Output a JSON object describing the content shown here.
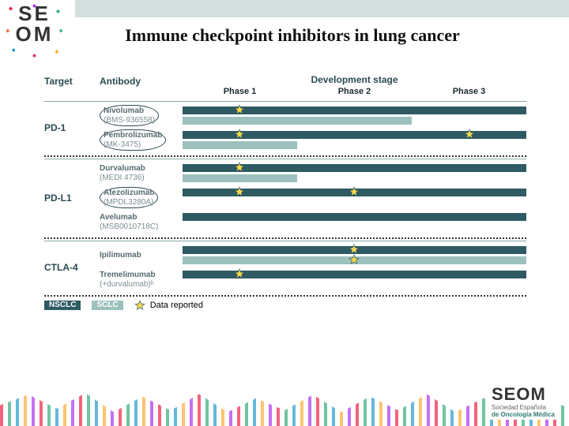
{
  "title": "Immune checkpoint inhibitors in lung cancer",
  "logo_left": "SE\nOM",
  "logo_right": {
    "big": "SEOM",
    "sub1": "Sociedad Española",
    "sub2": "de Oncología Médica"
  },
  "colors": {
    "nsclc": "#2e5a63",
    "sclc": "#9cc1bd",
    "star_fill": "#f7d94c",
    "star_stroke": "#2e5a63",
    "header_band": "#d3dfdd",
    "text_muted": "#2a4a52"
  },
  "headers": {
    "target": "Target",
    "antibody": "Antibody",
    "devstage": "Development stage",
    "phases": [
      "Phase 1",
      "Phase 2",
      "Phase 3"
    ]
  },
  "phase_fraction": {
    "1": 0.333,
    "2": 0.666,
    "3": 1.0
  },
  "groups": [
    {
      "target": "PD-1",
      "sep_after": true,
      "antibodies": [
        {
          "name": "Nivolumab",
          "code": "(BMS-936558)",
          "circled": true,
          "nsclc_phase": 3,
          "sclc_phase": 2,
          "nsclc_stars": [
            1
          ],
          "sclc_stars": []
        },
        {
          "name": "Pembrolizumab",
          "code": "(MK-3475)",
          "circled": true,
          "nsclc_phase": 3,
          "sclc_phase": 1,
          "nsclc_stars": [
            1,
            3
          ],
          "sclc_stars": []
        }
      ]
    },
    {
      "target": "PD-L1",
      "sep_after": true,
      "antibodies": [
        {
          "name": "Durvalumab",
          "code": "(MEDI 4736)",
          "circled": false,
          "nsclc_phase": 3,
          "sclc_phase": 1,
          "nsclc_stars": [
            1
          ],
          "sclc_stars": []
        },
        {
          "name": "Atezolizumab",
          "code": "(MPDL3280A)",
          "circled": true,
          "nsclc_phase": 3,
          "sclc_phase": 0,
          "nsclc_stars": [
            1,
            2
          ],
          "sclc_stars": []
        },
        {
          "name": "Avelumab",
          "code": "(MSB0010718C)",
          "circled": false,
          "nsclc_phase": 3,
          "sclc_phase": 0,
          "nsclc_stars": [],
          "sclc_stars": []
        }
      ]
    },
    {
      "target": "CTLA-4",
      "sep_after": true,
      "antibodies": [
        {
          "name": "Ipilimumab",
          "code": "",
          "circled": false,
          "nsclc_phase": 3,
          "sclc_phase": 3,
          "nsclc_stars": [
            2
          ],
          "sclc_stars": [
            2
          ]
        },
        {
          "name": "Tremelimumab",
          "code": "(+durvalumab)ᵇ",
          "circled": false,
          "nsclc_phase": 3,
          "sclc_phase": 0,
          "nsclc_stars": [
            1
          ],
          "sclc_stars": []
        }
      ]
    }
  ],
  "legend": {
    "nsclc": "NSCLC",
    "sclc": "SCLC",
    "reported": "Data reported"
  }
}
